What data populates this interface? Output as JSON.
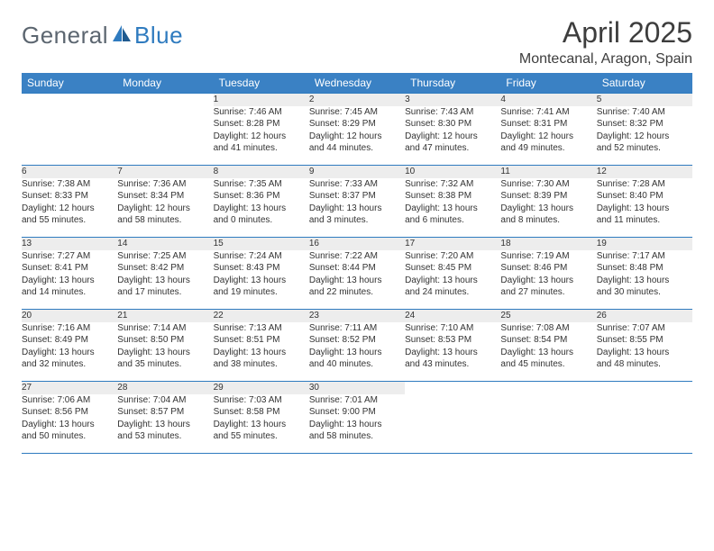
{
  "logo": {
    "general": "General",
    "blue": "Blue"
  },
  "title": "April 2025",
  "location": "Montecanal, Aragon, Spain",
  "colors": {
    "header_bg": "#3a81c4",
    "header_text": "#ffffff",
    "divider": "#2f7bbf",
    "daynum_bg": "#ededed",
    "page_bg": "#ffffff",
    "text": "#333333",
    "logo_gray": "#5c6670",
    "logo_blue": "#2f7bbf"
  },
  "weekdays": [
    "Sunday",
    "Monday",
    "Tuesday",
    "Wednesday",
    "Thursday",
    "Friday",
    "Saturday"
  ],
  "weeks": [
    [
      null,
      null,
      {
        "n": "1",
        "sunrise": "Sunrise: 7:46 AM",
        "sunset": "Sunset: 8:28 PM",
        "day1": "Daylight: 12 hours",
        "day2": "and 41 minutes."
      },
      {
        "n": "2",
        "sunrise": "Sunrise: 7:45 AM",
        "sunset": "Sunset: 8:29 PM",
        "day1": "Daylight: 12 hours",
        "day2": "and 44 minutes."
      },
      {
        "n": "3",
        "sunrise": "Sunrise: 7:43 AM",
        "sunset": "Sunset: 8:30 PM",
        "day1": "Daylight: 12 hours",
        "day2": "and 47 minutes."
      },
      {
        "n": "4",
        "sunrise": "Sunrise: 7:41 AM",
        "sunset": "Sunset: 8:31 PM",
        "day1": "Daylight: 12 hours",
        "day2": "and 49 minutes."
      },
      {
        "n": "5",
        "sunrise": "Sunrise: 7:40 AM",
        "sunset": "Sunset: 8:32 PM",
        "day1": "Daylight: 12 hours",
        "day2": "and 52 minutes."
      }
    ],
    [
      {
        "n": "6",
        "sunrise": "Sunrise: 7:38 AM",
        "sunset": "Sunset: 8:33 PM",
        "day1": "Daylight: 12 hours",
        "day2": "and 55 minutes."
      },
      {
        "n": "7",
        "sunrise": "Sunrise: 7:36 AM",
        "sunset": "Sunset: 8:34 PM",
        "day1": "Daylight: 12 hours",
        "day2": "and 58 minutes."
      },
      {
        "n": "8",
        "sunrise": "Sunrise: 7:35 AM",
        "sunset": "Sunset: 8:36 PM",
        "day1": "Daylight: 13 hours",
        "day2": "and 0 minutes."
      },
      {
        "n": "9",
        "sunrise": "Sunrise: 7:33 AM",
        "sunset": "Sunset: 8:37 PM",
        "day1": "Daylight: 13 hours",
        "day2": "and 3 minutes."
      },
      {
        "n": "10",
        "sunrise": "Sunrise: 7:32 AM",
        "sunset": "Sunset: 8:38 PM",
        "day1": "Daylight: 13 hours",
        "day2": "and 6 minutes."
      },
      {
        "n": "11",
        "sunrise": "Sunrise: 7:30 AM",
        "sunset": "Sunset: 8:39 PM",
        "day1": "Daylight: 13 hours",
        "day2": "and 8 minutes."
      },
      {
        "n": "12",
        "sunrise": "Sunrise: 7:28 AM",
        "sunset": "Sunset: 8:40 PM",
        "day1": "Daylight: 13 hours",
        "day2": "and 11 minutes."
      }
    ],
    [
      {
        "n": "13",
        "sunrise": "Sunrise: 7:27 AM",
        "sunset": "Sunset: 8:41 PM",
        "day1": "Daylight: 13 hours",
        "day2": "and 14 minutes."
      },
      {
        "n": "14",
        "sunrise": "Sunrise: 7:25 AM",
        "sunset": "Sunset: 8:42 PM",
        "day1": "Daylight: 13 hours",
        "day2": "and 17 minutes."
      },
      {
        "n": "15",
        "sunrise": "Sunrise: 7:24 AM",
        "sunset": "Sunset: 8:43 PM",
        "day1": "Daylight: 13 hours",
        "day2": "and 19 minutes."
      },
      {
        "n": "16",
        "sunrise": "Sunrise: 7:22 AM",
        "sunset": "Sunset: 8:44 PM",
        "day1": "Daylight: 13 hours",
        "day2": "and 22 minutes."
      },
      {
        "n": "17",
        "sunrise": "Sunrise: 7:20 AM",
        "sunset": "Sunset: 8:45 PM",
        "day1": "Daylight: 13 hours",
        "day2": "and 24 minutes."
      },
      {
        "n": "18",
        "sunrise": "Sunrise: 7:19 AM",
        "sunset": "Sunset: 8:46 PM",
        "day1": "Daylight: 13 hours",
        "day2": "and 27 minutes."
      },
      {
        "n": "19",
        "sunrise": "Sunrise: 7:17 AM",
        "sunset": "Sunset: 8:48 PM",
        "day1": "Daylight: 13 hours",
        "day2": "and 30 minutes."
      }
    ],
    [
      {
        "n": "20",
        "sunrise": "Sunrise: 7:16 AM",
        "sunset": "Sunset: 8:49 PM",
        "day1": "Daylight: 13 hours",
        "day2": "and 32 minutes."
      },
      {
        "n": "21",
        "sunrise": "Sunrise: 7:14 AM",
        "sunset": "Sunset: 8:50 PM",
        "day1": "Daylight: 13 hours",
        "day2": "and 35 minutes."
      },
      {
        "n": "22",
        "sunrise": "Sunrise: 7:13 AM",
        "sunset": "Sunset: 8:51 PM",
        "day1": "Daylight: 13 hours",
        "day2": "and 38 minutes."
      },
      {
        "n": "23",
        "sunrise": "Sunrise: 7:11 AM",
        "sunset": "Sunset: 8:52 PM",
        "day1": "Daylight: 13 hours",
        "day2": "and 40 minutes."
      },
      {
        "n": "24",
        "sunrise": "Sunrise: 7:10 AM",
        "sunset": "Sunset: 8:53 PM",
        "day1": "Daylight: 13 hours",
        "day2": "and 43 minutes."
      },
      {
        "n": "25",
        "sunrise": "Sunrise: 7:08 AM",
        "sunset": "Sunset: 8:54 PM",
        "day1": "Daylight: 13 hours",
        "day2": "and 45 minutes."
      },
      {
        "n": "26",
        "sunrise": "Sunrise: 7:07 AM",
        "sunset": "Sunset: 8:55 PM",
        "day1": "Daylight: 13 hours",
        "day2": "and 48 minutes."
      }
    ],
    [
      {
        "n": "27",
        "sunrise": "Sunrise: 7:06 AM",
        "sunset": "Sunset: 8:56 PM",
        "day1": "Daylight: 13 hours",
        "day2": "and 50 minutes."
      },
      {
        "n": "28",
        "sunrise": "Sunrise: 7:04 AM",
        "sunset": "Sunset: 8:57 PM",
        "day1": "Daylight: 13 hours",
        "day2": "and 53 minutes."
      },
      {
        "n": "29",
        "sunrise": "Sunrise: 7:03 AM",
        "sunset": "Sunset: 8:58 PM",
        "day1": "Daylight: 13 hours",
        "day2": "and 55 minutes."
      },
      {
        "n": "30",
        "sunrise": "Sunrise: 7:01 AM",
        "sunset": "Sunset: 9:00 PM",
        "day1": "Daylight: 13 hours",
        "day2": "and 58 minutes."
      },
      null,
      null,
      null
    ]
  ]
}
